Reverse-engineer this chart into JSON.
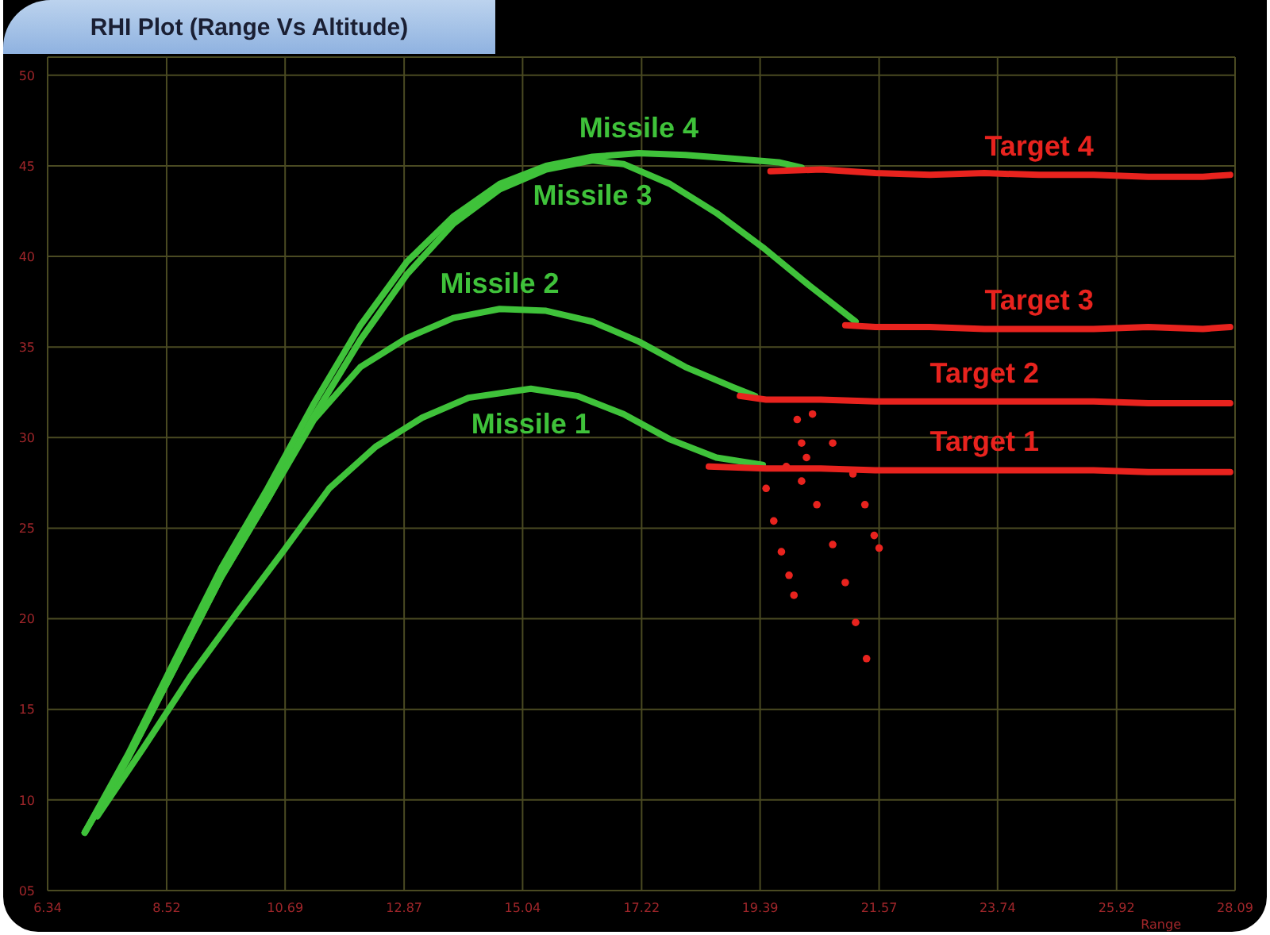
{
  "chart_data": {
    "type": "line",
    "title": "RHI Plot (Range Vs Altitude)",
    "xlabel": "Range",
    "xlim": [
      6.34,
      28.09
    ],
    "xticks": [
      6.34,
      8.52,
      10.69,
      12.87,
      15.04,
      17.22,
      19.39,
      21.57,
      23.74,
      25.92,
      28.09
    ],
    "ylim": [
      5,
      51
    ],
    "yticks": [
      {
        "value": 5,
        "label": "05"
      },
      10,
      15,
      20,
      25,
      30,
      35,
      40,
      45,
      50
    ],
    "grid": true,
    "series": [
      {
        "name": "Missile 1",
        "color": "#3fc23a",
        "x": [
          7.25,
          8.1,
          8.95,
          9.8,
          10.65,
          11.5,
          12.35,
          13.2,
          14.05,
          15.19,
          16.04,
          16.89,
          17.74,
          18.59,
          19.44
        ],
        "values": [
          9.1,
          12.9,
          16.8,
          20.3,
          23.7,
          27.2,
          29.5,
          31.1,
          32.2,
          32.7,
          32.3,
          31.3,
          29.9,
          28.9,
          28.5
        ]
      },
      {
        "name": "Missile 2",
        "color": "#3fc23a",
        "x": [
          7.02,
          7.81,
          8.67,
          9.52,
          10.37,
          11.22,
          12.07,
          12.92,
          13.77,
          14.62,
          15.47,
          16.32,
          17.17,
          18.02,
          18.88,
          19.3
        ],
        "values": [
          8.2,
          12.3,
          17.3,
          22.3,
          26.6,
          31.0,
          33.9,
          35.5,
          36.6,
          37.1,
          37.0,
          36.4,
          35.3,
          33.9,
          32.8,
          32.3
        ]
      },
      {
        "name": "Missile 3",
        "color": "#3fc23a",
        "x": [
          7.02,
          7.81,
          8.67,
          9.52,
          10.37,
          11.22,
          12.07,
          12.92,
          13.77,
          14.62,
          15.47,
          16.32,
          16.89,
          17.74,
          18.59,
          19.44,
          20.29,
          21.14
        ],
        "values": [
          8.2,
          12.3,
          17.3,
          22.3,
          26.6,
          31.2,
          35.4,
          39.0,
          41.8,
          43.7,
          44.8,
          45.3,
          45.1,
          44.0,
          42.4,
          40.5,
          38.4,
          36.4
        ]
      },
      {
        "name": "Missile 4",
        "color": "#3fc23a",
        "x": [
          7.02,
          7.81,
          8.67,
          9.52,
          10.37,
          11.22,
          12.07,
          12.92,
          13.77,
          14.62,
          15.47,
          16.32,
          17.17,
          18.02,
          18.88,
          19.73,
          20.15
        ],
        "values": [
          8.2,
          12.5,
          17.7,
          22.8,
          27.2,
          31.9,
          36.2,
          39.7,
          42.2,
          44.0,
          45.0,
          45.5,
          45.7,
          45.6,
          45.4,
          45.2,
          44.9
        ]
      },
      {
        "name": "Target 1",
        "color": "#e8231e",
        "x": [
          18.45,
          19.5,
          20.5,
          21.5,
          22.5,
          23.5,
          24.5,
          25.5,
          26.5,
          27.5,
          28.0
        ],
        "values": [
          28.4,
          28.3,
          28.3,
          28.2,
          28.2,
          28.2,
          28.2,
          28.2,
          28.1,
          28.1,
          28.1
        ]
      },
      {
        "name": "Target 2",
        "color": "#e8231e",
        "x": [
          19.02,
          19.5,
          20.5,
          21.5,
          22.5,
          23.5,
          24.5,
          25.5,
          26.5,
          27.5,
          28.0
        ],
        "values": [
          32.3,
          32.1,
          32.1,
          32.0,
          32.0,
          32.0,
          32.0,
          32.0,
          31.9,
          31.9,
          31.9
        ]
      },
      {
        "name": "Target 3",
        "color": "#e8231e",
        "x": [
          20.95,
          21.5,
          22.5,
          23.5,
          24.5,
          25.5,
          26.5,
          27.5,
          28.0
        ],
        "values": [
          36.2,
          36.1,
          36.1,
          36.0,
          36.0,
          36.0,
          36.1,
          36.0,
          36.1
        ]
      },
      {
        "name": "Target 4",
        "color": "#e8231e",
        "x": [
          19.58,
          20.5,
          21.5,
          22.5,
          23.5,
          24.5,
          25.5,
          26.5,
          27.5,
          28.0
        ],
        "values": [
          44.7,
          44.8,
          44.6,
          44.5,
          44.6,
          44.5,
          44.5,
          44.4,
          44.4,
          44.5
        ]
      },
      {
        "type": "scatter",
        "marker": "circle",
        "color": "#e8231e",
        "x": [
          19.87,
          20.15,
          20.43,
          20.72,
          20.95,
          21.14,
          21.34,
          20.35,
          20.72,
          21.09,
          21.31,
          21.48,
          21.57,
          19.5,
          19.64,
          19.78,
          19.92,
          20.01,
          20.07,
          20.15,
          20.24
        ],
        "values": [
          28.4,
          27.6,
          26.3,
          24.1,
          22.0,
          19.8,
          17.8,
          31.3,
          29.7,
          28.0,
          26.3,
          24.6,
          23.9,
          27.2,
          25.4,
          23.7,
          22.4,
          21.3,
          31.0,
          29.7,
          28.9
        ]
      }
    ]
  }
}
